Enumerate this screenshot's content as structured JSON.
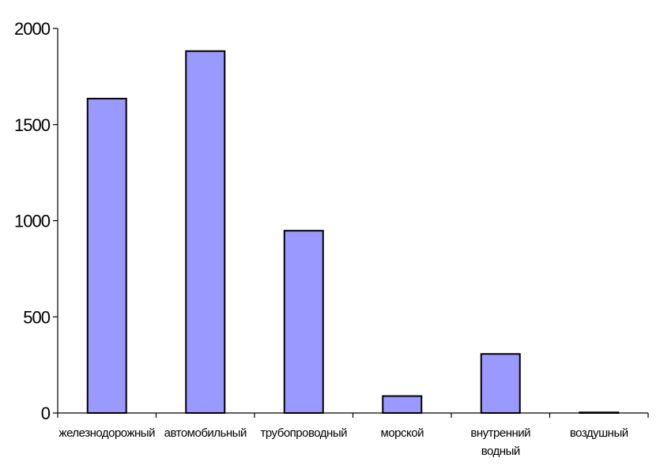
{
  "chart_data": {
    "type": "bar",
    "categories": [
      [
        "железнодорожный"
      ],
      [
        "автомобильный"
      ],
      [
        "трубопроводный"
      ],
      [
        "морской"
      ],
      [
        "внутренний",
        "водный"
      ],
      [
        "воздушный"
      ]
    ],
    "values": [
      1635,
      1882,
      948,
      88,
      307,
      3
    ],
    "ylim": [
      0,
      2000
    ],
    "yticks": [
      "0",
      "500",
      "1000",
      "1500",
      "2000"
    ],
    "bar_color": "#9999ff",
    "grid": false,
    "legend": "none"
  }
}
